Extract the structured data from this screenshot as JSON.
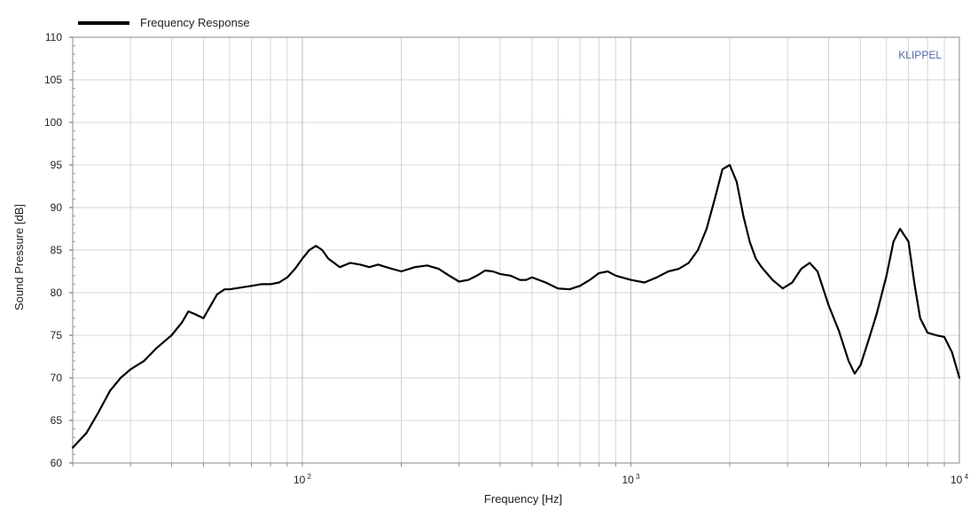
{
  "chart_data": {
    "type": "line",
    "title": "",
    "xlabel": "Frequency  [Hz]",
    "ylabel": "Sound Pressure  [dB]",
    "x_scale": "log",
    "xlim": [
      20,
      10000
    ],
    "ylim": [
      60,
      110
    ],
    "y_ticks": [
      "60",
      "65",
      "70",
      "75",
      "80",
      "85",
      "90",
      "95",
      "100",
      "105",
      "110"
    ],
    "x_tick_labels": [
      {
        "value": 100,
        "base": "10",
        "exp": "2"
      },
      {
        "value": 1000,
        "base": "10",
        "exp": "3"
      },
      {
        "value": 10000,
        "base": "10",
        "exp": "4"
      }
    ],
    "grid": true,
    "legend_position": "top-left",
    "watermark": "KLIPPEL",
    "line_color": "#000000",
    "series": [
      {
        "name": "Frequency Response",
        "x": [
          20,
          22,
          24,
          26,
          28,
          30,
          33,
          36,
          40,
          43,
          45,
          47,
          50,
          55,
          58,
          60,
          65,
          70,
          75,
          80,
          85,
          90,
          95,
          100,
          105,
          110,
          115,
          120,
          130,
          140,
          150,
          160,
          170,
          180,
          200,
          220,
          240,
          260,
          280,
          300,
          320,
          340,
          360,
          380,
          400,
          430,
          460,
          480,
          500,
          550,
          600,
          650,
          700,
          750,
          800,
          850,
          900,
          1000,
          1100,
          1200,
          1300,
          1400,
          1500,
          1600,
          1700,
          1800,
          1900,
          2000,
          2100,
          2200,
          2300,
          2400,
          2500,
          2700,
          2900,
          3100,
          3300,
          3500,
          3700,
          4000,
          4300,
          4600,
          4800,
          5000,
          5300,
          5600,
          6000,
          6300,
          6600,
          7000,
          7300,
          7600,
          8000,
          8500,
          9000,
          9500,
          10000
        ],
        "y": [
          61.8,
          63.5,
          66.0,
          68.5,
          70.0,
          71.0,
          72.0,
          73.5,
          75.0,
          76.5,
          77.8,
          77.5,
          77.0,
          79.8,
          80.4,
          80.4,
          80.6,
          80.8,
          81.0,
          81.0,
          81.2,
          81.8,
          82.8,
          84.0,
          85.0,
          85.5,
          85.0,
          84.0,
          83.0,
          83.5,
          83.3,
          83.0,
          83.3,
          83.0,
          82.5,
          83.0,
          83.2,
          82.8,
          82.0,
          81.3,
          81.5,
          82.0,
          82.6,
          82.5,
          82.2,
          82.0,
          81.5,
          81.5,
          81.8,
          81.2,
          80.5,
          80.4,
          80.8,
          81.5,
          82.3,
          82.5,
          82.0,
          81.5,
          81.2,
          81.8,
          82.5,
          82.8,
          83.5,
          85.0,
          87.5,
          91.0,
          94.5,
          95.0,
          93.0,
          89.0,
          86.0,
          84.0,
          83.0,
          81.5,
          80.5,
          81.2,
          82.8,
          83.5,
          82.5,
          78.5,
          75.5,
          72.0,
          70.5,
          71.5,
          74.5,
          77.5,
          82.0,
          86.0,
          87.5,
          86.0,
          81.0,
          77.0,
          75.3,
          75.0,
          74.8,
          73.0,
          70.0
        ]
      }
    ]
  }
}
